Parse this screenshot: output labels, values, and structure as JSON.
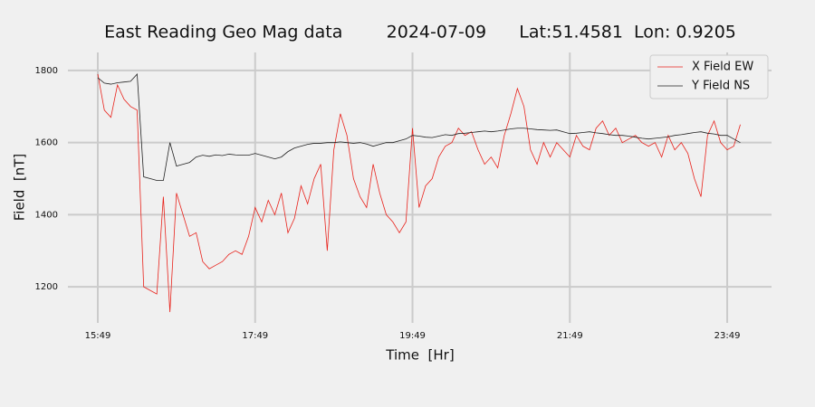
{
  "chart_data": {
    "type": "line",
    "title": "East Reading Geo Mag data        2024-07-09      Lat:51.4581  Lon: 0.9205",
    "x_label": "Time  [Hr]",
    "y_label": "Field  [nT]",
    "x": [
      "15:49",
      "15:54",
      "15:59",
      "16:04",
      "16:09",
      "16:14",
      "16:19",
      "16:24",
      "16:29",
      "16:34",
      "16:39",
      "16:44",
      "16:49",
      "16:54",
      "16:59",
      "17:04",
      "17:09",
      "17:14",
      "17:19",
      "17:24",
      "17:29",
      "17:34",
      "17:39",
      "17:44",
      "17:49",
      "17:54",
      "17:59",
      "18:04",
      "18:09",
      "18:14",
      "18:19",
      "18:24",
      "18:29",
      "18:34",
      "18:39",
      "18:44",
      "18:49",
      "18:54",
      "18:59",
      "19:04",
      "19:09",
      "19:14",
      "19:19",
      "19:24",
      "19:29",
      "19:34",
      "19:39",
      "19:44",
      "19:49",
      "19:54",
      "19:59",
      "20:04",
      "20:09",
      "20:14",
      "20:19",
      "20:24",
      "20:29",
      "20:34",
      "20:39",
      "20:44",
      "20:49",
      "20:54",
      "20:59",
      "21:04",
      "21:09",
      "21:14",
      "21:19",
      "21:24",
      "21:29",
      "21:34",
      "21:39",
      "21:44",
      "21:49",
      "21:54",
      "21:59",
      "22:04",
      "22:09",
      "22:14",
      "22:19",
      "22:24",
      "22:29",
      "22:34",
      "22:39",
      "22:44",
      "22:49",
      "22:54",
      "22:59",
      "23:04",
      "23:09",
      "23:14",
      "23:19",
      "23:24",
      "23:29",
      "23:34",
      "23:39",
      "23:44",
      "23:49",
      "23:54",
      "23:59"
    ],
    "series": [
      {
        "name": "X Field EW",
        "color": "#e8221b",
        "values": [
          1790,
          1690,
          1670,
          1760,
          1720,
          1700,
          1690,
          1200,
          1190,
          1180,
          1450,
          1130,
          1460,
          1400,
          1340,
          1350,
          1270,
          1250,
          1260,
          1270,
          1290,
          1300,
          1290,
          1340,
          1420,
          1380,
          1440,
          1400,
          1460,
          1350,
          1390,
          1480,
          1430,
          1500,
          1540,
          1300,
          1580,
          1680,
          1620,
          1500,
          1450,
          1420,
          1540,
          1460,
          1400,
          1380,
          1350,
          1380,
          1640,
          1420,
          1480,
          1500,
          1560,
          1590,
          1600,
          1640,
          1620,
          1630,
          1580,
          1540,
          1560,
          1530,
          1620,
          1680,
          1750,
          1700,
          1580,
          1540,
          1600,
          1560,
          1600,
          1580,
          1560,
          1620,
          1590,
          1580,
          1640,
          1660,
          1620,
          1640,
          1600,
          1610,
          1620,
          1600,
          1590,
          1600,
          1560,
          1620,
          1580,
          1600,
          1570,
          1500,
          1450,
          1620,
          1660,
          1600,
          1580,
          1590,
          1650
        ]
      },
      {
        "name": "Y Field NS",
        "color": "#222222",
        "values": [
          1780,
          1765,
          1762,
          1766,
          1768,
          1770,
          1790,
          1505,
          1500,
          1495,
          1495,
          1600,
          1535,
          1540,
          1545,
          1560,
          1565,
          1562,
          1566,
          1564,
          1568,
          1566,
          1565,
          1565,
          1570,
          1565,
          1560,
          1555,
          1560,
          1575,
          1585,
          1590,
          1595,
          1598,
          1598,
          1600,
          1600,
          1602,
          1600,
          1598,
          1600,
          1596,
          1590,
          1595,
          1600,
          1600,
          1605,
          1610,
          1620,
          1618,
          1615,
          1614,
          1618,
          1622,
          1620,
          1625,
          1626,
          1628,
          1630,
          1632,
          1630,
          1632,
          1635,
          1638,
          1640,
          1640,
          1638,
          1636,
          1635,
          1634,
          1635,
          1630,
          1625,
          1626,
          1628,
          1630,
          1627,
          1625,
          1622,
          1620,
          1620,
          1618,
          1615,
          1612,
          1610,
          1612,
          1614,
          1616,
          1620,
          1622,
          1625,
          1628,
          1630,
          1626,
          1624,
          1620,
          1620,
          1610,
          1600
        ]
      }
    ],
    "xticks": [
      "15:49",
      "17:49",
      "19:49",
      "21:49",
      "23:49"
    ],
    "ylim": [
      1100,
      1850
    ],
    "yticks": [
      1200,
      1400,
      1600,
      1800
    ],
    "grid": true,
    "legend": "upper right"
  }
}
